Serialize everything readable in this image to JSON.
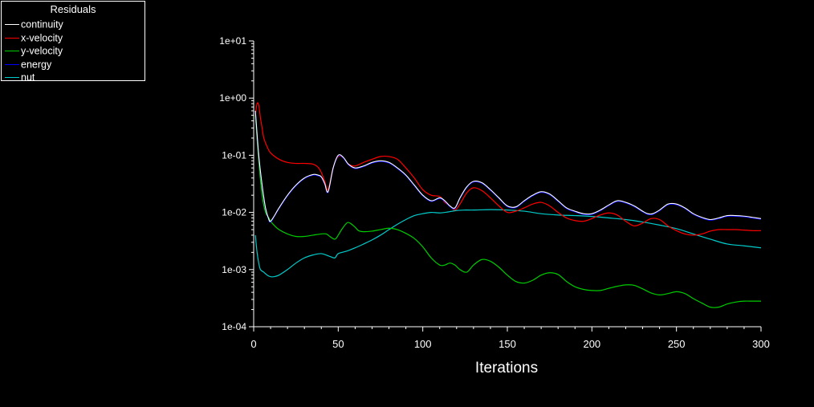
{
  "colors": {
    "background": "#000000",
    "axis": "#ffffff",
    "continuity": "#ffffff",
    "x-velocity": "#ff0000",
    "y-velocity": "#00cc00",
    "energy": "#0000ff",
    "nut": "#00cccc"
  },
  "legend": {
    "title": "Residuals",
    "items": [
      {
        "label": "continuity",
        "color": "#ffffff"
      },
      {
        "label": "x-velocity",
        "color": "#ff0000"
      },
      {
        "label": "y-velocity",
        "color": "#00cc00"
      },
      {
        "label": "energy",
        "color": "#0000ff"
      },
      {
        "label": "nut",
        "color": "#00cccc"
      }
    ]
  },
  "chart_data": {
    "type": "line",
    "title": "",
    "xlabel": "Iterations",
    "ylabel": "",
    "yscale": "log",
    "xlim": [
      0,
      300
    ],
    "ylim": [
      0.0001,
      10
    ],
    "xticks": [
      0,
      50,
      100,
      150,
      200,
      250,
      300
    ],
    "xtick_labels": [
      "0",
      "50",
      "100",
      "150",
      "200",
      "250",
      "300"
    ],
    "yticks": [
      0.0001,
      0.001,
      0.01,
      0.1,
      1,
      10
    ],
    "ytick_labels": [
      "1e-04",
      "1e-03",
      "1e-02",
      "1e-01",
      "1e+00",
      "1e+01"
    ],
    "grid": false,
    "legend_position": "top-left",
    "series": [
      {
        "name": "continuity",
        "color": "#ffffff",
        "x": [
          1,
          3,
          5,
          7,
          9,
          10,
          12,
          15,
          20,
          25,
          30,
          35,
          38,
          40,
          42,
          44,
          47,
          50,
          53,
          56,
          60,
          65,
          70,
          75,
          80,
          85,
          90,
          95,
          100,
          105,
          110,
          113,
          116,
          119,
          122,
          126,
          130,
          135,
          140,
          145,
          150,
          155,
          160,
          165,
          170,
          175,
          180,
          185,
          190,
          195,
          200,
          205,
          210,
          215,
          220,
          225,
          230,
          233,
          236,
          240,
          245,
          250,
          255,
          260,
          265,
          270,
          275,
          280,
          285,
          290,
          295,
          300
        ],
        "y": [
          0.6,
          0.1,
          0.03,
          0.012,
          0.0075,
          0.007,
          0.0085,
          0.012,
          0.02,
          0.03,
          0.04,
          0.046,
          0.045,
          0.042,
          0.032,
          0.023,
          0.06,
          0.1,
          0.092,
          0.07,
          0.06,
          0.065,
          0.075,
          0.08,
          0.075,
          0.06,
          0.045,
          0.03,
          0.02,
          0.016,
          0.018,
          0.016,
          0.013,
          0.012,
          0.018,
          0.028,
          0.035,
          0.033,
          0.025,
          0.018,
          0.013,
          0.0125,
          0.016,
          0.02,
          0.023,
          0.021,
          0.016,
          0.012,
          0.0105,
          0.0095,
          0.0095,
          0.011,
          0.0135,
          0.016,
          0.015,
          0.013,
          0.0105,
          0.0095,
          0.0095,
          0.011,
          0.014,
          0.014,
          0.012,
          0.0095,
          0.0082,
          0.0075,
          0.008,
          0.0088,
          0.0088,
          0.0086,
          0.0082,
          0.0078
        ]
      },
      {
        "name": "x-velocity",
        "color": "#ff0000",
        "x": [
          1,
          2,
          3,
          4,
          5,
          6,
          8,
          10,
          15,
          20,
          25,
          30,
          35,
          38,
          40,
          42,
          44,
          47,
          50,
          53,
          56,
          60,
          65,
          70,
          75,
          80,
          85,
          90,
          95,
          100,
          105,
          110,
          113,
          116,
          119,
          122,
          126,
          130,
          135,
          140,
          145,
          150,
          155,
          160,
          165,
          170,
          175,
          180,
          185,
          190,
          195,
          200,
          205,
          210,
          215,
          220,
          225,
          230,
          235,
          240,
          245,
          250,
          255,
          260,
          265,
          270,
          275,
          280,
          285,
          290,
          295,
          300
        ],
        "y": [
          0.5,
          0.8,
          0.75,
          0.45,
          0.3,
          0.2,
          0.14,
          0.11,
          0.085,
          0.075,
          0.072,
          0.072,
          0.07,
          0.062,
          0.05,
          0.035,
          0.025,
          0.06,
          0.095,
          0.09,
          0.07,
          0.065,
          0.075,
          0.085,
          0.095,
          0.095,
          0.085,
          0.06,
          0.04,
          0.025,
          0.02,
          0.019,
          0.015,
          0.013,
          0.011,
          0.014,
          0.022,
          0.027,
          0.024,
          0.018,
          0.013,
          0.01,
          0.0105,
          0.012,
          0.014,
          0.015,
          0.013,
          0.01,
          0.008,
          0.0072,
          0.007,
          0.0078,
          0.009,
          0.0098,
          0.009,
          0.007,
          0.0058,
          0.0065,
          0.0078,
          0.0075,
          0.0058,
          0.0048,
          0.0042,
          0.004,
          0.0042,
          0.0047,
          0.005,
          0.005,
          0.005,
          0.0049,
          0.0048,
          0.0048
        ]
      },
      {
        "name": "y-velocity",
        "color": "#00cc00",
        "x": [
          1,
          3,
          5,
          7,
          9,
          10,
          12,
          15,
          20,
          25,
          30,
          35,
          40,
          43,
          45,
          48,
          50,
          52,
          55,
          57,
          60,
          62,
          65,
          70,
          75,
          80,
          85,
          90,
          95,
          100,
          105,
          110,
          113,
          116,
          119,
          122,
          126,
          130,
          135,
          140,
          145,
          150,
          155,
          160,
          165,
          170,
          175,
          180,
          185,
          190,
          195,
          200,
          205,
          210,
          215,
          220,
          225,
          230,
          235,
          240,
          245,
          250,
          255,
          260,
          265,
          270,
          275,
          280,
          285,
          290,
          295,
          300
        ],
        "y": [
          0.5,
          0.08,
          0.02,
          0.01,
          0.008,
          0.007,
          0.006,
          0.005,
          0.0042,
          0.0038,
          0.0038,
          0.004,
          0.0042,
          0.0042,
          0.0038,
          0.0034,
          0.004,
          0.005,
          0.0065,
          0.0065,
          0.0055,
          0.0048,
          0.0046,
          0.0047,
          0.005,
          0.0053,
          0.005,
          0.0043,
          0.0035,
          0.0025,
          0.0016,
          0.0012,
          0.0012,
          0.0013,
          0.0012,
          0.001,
          0.0009,
          0.0012,
          0.0015,
          0.0014,
          0.0011,
          0.0008,
          0.00062,
          0.00058,
          0.00065,
          0.0008,
          0.00088,
          0.00082,
          0.00062,
          0.0005,
          0.00045,
          0.00043,
          0.00043,
          0.00047,
          0.00051,
          0.00054,
          0.00053,
          0.00046,
          0.00039,
          0.00036,
          0.00038,
          0.00041,
          0.00038,
          0.00031,
          0.00026,
          0.00022,
          0.00022,
          0.00025,
          0.00027,
          0.00028,
          0.00028,
          0.00028
        ]
      },
      {
        "name": "energy",
        "color": "#0000ff",
        "x": [
          1,
          3,
          5,
          7,
          9,
          10,
          12,
          15,
          20,
          25,
          30,
          35,
          38,
          40,
          42,
          44,
          47,
          50,
          53,
          56,
          60,
          65,
          70,
          75,
          80,
          85,
          90,
          95,
          100,
          105,
          110,
          113,
          116,
          119,
          122,
          126,
          130,
          135,
          140,
          145,
          150,
          155,
          160,
          165,
          170,
          175,
          180,
          185,
          190,
          195,
          200,
          205,
          210,
          215,
          220,
          225,
          230,
          233,
          236,
          240,
          245,
          250,
          255,
          260,
          265,
          270,
          275,
          280,
          285,
          290,
          295,
          300
        ],
        "y": [
          0.6,
          0.1,
          0.03,
          0.012,
          0.0075,
          0.007,
          0.0085,
          0.012,
          0.02,
          0.03,
          0.04,
          0.046,
          0.045,
          0.042,
          0.032,
          0.023,
          0.06,
          0.1,
          0.092,
          0.07,
          0.06,
          0.065,
          0.075,
          0.08,
          0.075,
          0.06,
          0.045,
          0.03,
          0.02,
          0.016,
          0.018,
          0.016,
          0.013,
          0.012,
          0.018,
          0.028,
          0.035,
          0.033,
          0.025,
          0.018,
          0.013,
          0.0125,
          0.016,
          0.02,
          0.023,
          0.021,
          0.016,
          0.012,
          0.0105,
          0.0095,
          0.0095,
          0.011,
          0.0135,
          0.016,
          0.015,
          0.013,
          0.0105,
          0.0095,
          0.0095,
          0.011,
          0.014,
          0.014,
          0.012,
          0.0095,
          0.0082,
          0.0075,
          0.008,
          0.0088,
          0.0088,
          0.0086,
          0.0082,
          0.0078
        ]
      },
      {
        "name": "nut",
        "color": "#00cccc",
        "x": [
          1,
          2,
          3,
          4,
          6,
          8,
          10,
          12,
          15,
          20,
          25,
          30,
          35,
          40,
          45,
          48,
          50,
          55,
          60,
          65,
          70,
          75,
          80,
          85,
          90,
          95,
          100,
          105,
          110,
          115,
          120,
          125,
          130,
          140,
          150,
          160,
          170,
          180,
          190,
          200,
          210,
          220,
          230,
          240,
          250,
          260,
          270,
          280,
          290,
          300
        ],
        "y": [
          0.004,
          0.002,
          0.0013,
          0.001,
          0.0009,
          0.0008,
          0.00075,
          0.00075,
          0.0008,
          0.001,
          0.0013,
          0.0016,
          0.0018,
          0.0019,
          0.0017,
          0.0016,
          0.0019,
          0.0021,
          0.0024,
          0.0028,
          0.0033,
          0.004,
          0.005,
          0.0062,
          0.0075,
          0.0088,
          0.0095,
          0.01,
          0.0098,
          0.0102,
          0.0108,
          0.011,
          0.011,
          0.0112,
          0.011,
          0.0105,
          0.0095,
          0.009,
          0.0088,
          0.0085,
          0.008,
          0.0075,
          0.0068,
          0.006,
          0.0052,
          0.0042,
          0.0034,
          0.0028,
          0.0026,
          0.0024
        ]
      }
    ]
  }
}
